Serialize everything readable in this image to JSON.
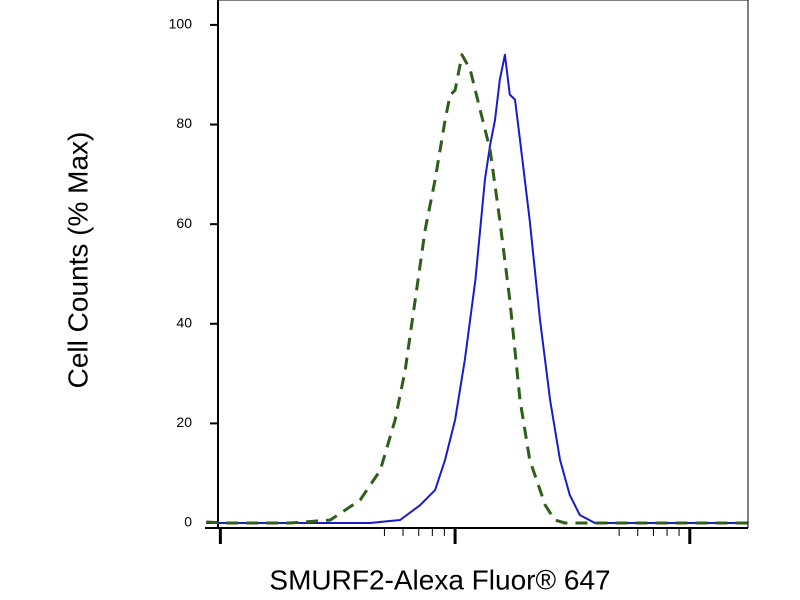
{
  "chart_data": {
    "type": "line",
    "y_label": "Cell Counts (% Max)",
    "x_label": "SMURF2-Alexa Fluor® 647",
    "xscale": "log",
    "xlim": [
      0.86,
      177
    ],
    "xticks": [
      1,
      10,
      100
    ],
    "xminor_ticks": [
      5,
      6,
      7,
      8,
      9,
      50,
      60,
      70,
      80,
      90
    ],
    "ylim": [
      -1,
      105
    ],
    "yticks": [
      0,
      20,
      40,
      60,
      80,
      100
    ],
    "series": [
      {
        "color": "#1a1acc",
        "dash": false,
        "x": [
          0.87,
          4.35,
          5.83,
          7.1,
          8.22,
          9.07,
          10.0,
          11.0,
          12.2,
          13.4,
          14.1,
          14.8,
          15.5,
          16.3,
          17.1,
          18.0,
          18.9,
          20.8,
          23.0,
          25.4,
          28.0,
          30.8,
          34.0,
          39.4,
          45.7,
          176
        ],
        "values": [
          0,
          0,
          0.6,
          3.6,
          6.6,
          12.7,
          20.7,
          32.7,
          48.8,
          68.9,
          75.9,
          80.9,
          89,
          94,
          86,
          85,
          76.9,
          60.8,
          40.8,
          24.7,
          12.7,
          5.6,
          1.6,
          0,
          0,
          0
        ]
      },
      {
        "color": "#2e5e1a",
        "dash": true,
        "x": [
          0.87,
          1.05,
          1.99,
          2.94,
          3.94,
          4.8,
          5.55,
          6.13,
          6.76,
          7.45,
          8.22,
          9.07,
          9.52,
          10.0,
          10.7,
          11.6,
          12.8,
          14.1,
          15.5,
          17.1,
          18.9,
          20.8,
          24.2,
          26.6,
          29.4,
          176
        ],
        "values": [
          0.2,
          0,
          0,
          0.6,
          4.6,
          10.6,
          20.7,
          30.7,
          44.8,
          58.8,
          68.9,
          80.9,
          85.9,
          86.9,
          94,
          91,
          82.9,
          74.9,
          60.8,
          44.8,
          24.7,
          12.7,
          3.6,
          0.6,
          0,
          0
        ]
      }
    ]
  }
}
